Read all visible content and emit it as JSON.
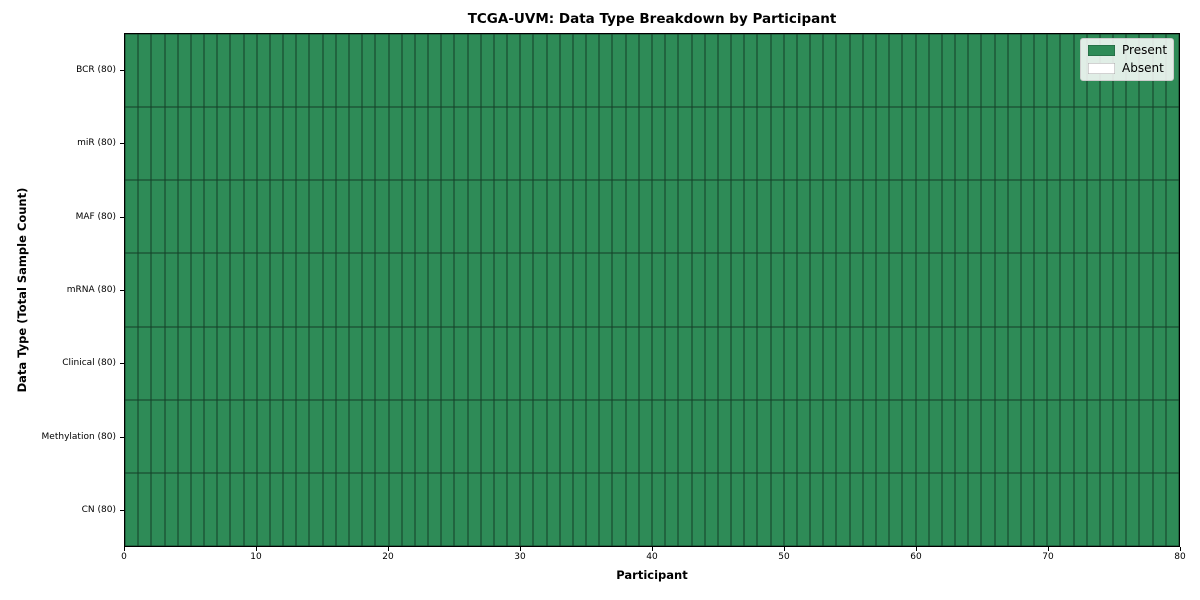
{
  "chart_data": {
    "type": "heatmap",
    "title": "TCGA-UVM: Data Type Breakdown by Participant",
    "xlabel": "Participant",
    "ylabel": "Data Type (Total Sample Count)",
    "xlim": [
      0,
      80
    ],
    "x_tick_values": [
      0,
      10,
      20,
      30,
      40,
      50,
      60,
      70,
      80
    ],
    "n_participants": 80,
    "rows": [
      {
        "label": "BCR (80)",
        "present_count": 80
      },
      {
        "label": "miR (80)",
        "present_count": 80
      },
      {
        "label": "MAF (80)",
        "present_count": 80
      },
      {
        "label": "mRNA (80)",
        "present_count": 80
      },
      {
        "label": "Clinical (80)",
        "present_count": 80
      },
      {
        "label": "Methylation (80)",
        "present_count": 80
      },
      {
        "label": "CN (80)",
        "present_count": 80
      }
    ],
    "legend": [
      {
        "label": "Present",
        "color": "#2E8B57"
      },
      {
        "label": "Absent",
        "color": "#FFFFFF"
      }
    ],
    "colors": {
      "present": "#2E8B57",
      "absent": "#FFFFFF",
      "cell_edge": "#00000088",
      "axis": "#000000"
    },
    "grid": false,
    "legend_position": "upper right"
  }
}
